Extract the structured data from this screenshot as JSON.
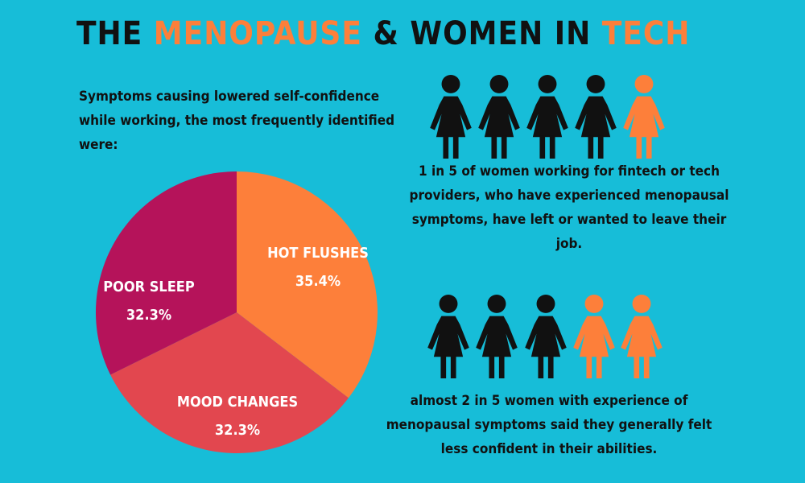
{
  "title_parts": [
    "THE ",
    "MENOPAUSE",
    " & WOMEN IN ",
    "TECH"
  ],
  "intro_lines": [
    "Symptoms causing lowered self-confidence",
    "while working, the most frequently identified",
    "were:"
  ],
  "chart_data": {
    "type": "pie",
    "categories": [
      "HOT FLUSHES",
      "MOOD CHANGES",
      "POOR SLEEP"
    ],
    "values": [
      35.4,
      32.3,
      32.3
    ],
    "value_labels": [
      "35.4%",
      "32.3%",
      "32.3%"
    ],
    "colors": [
      "#fd7f3a",
      "#e2474f",
      "#b5135a"
    ]
  },
  "stats": [
    {
      "lines": [
        "1 in 5 of  women working for fintech or tech",
        "providers, who have experienced menopausal",
        "symptoms, have left or wanted to leave their",
        "job."
      ]
    },
    {
      "lines": [
        "almost 2 in 5  women with experience of",
        "menopausal symptoms said they generally felt",
        "less confident in their abilities."
      ]
    }
  ]
}
